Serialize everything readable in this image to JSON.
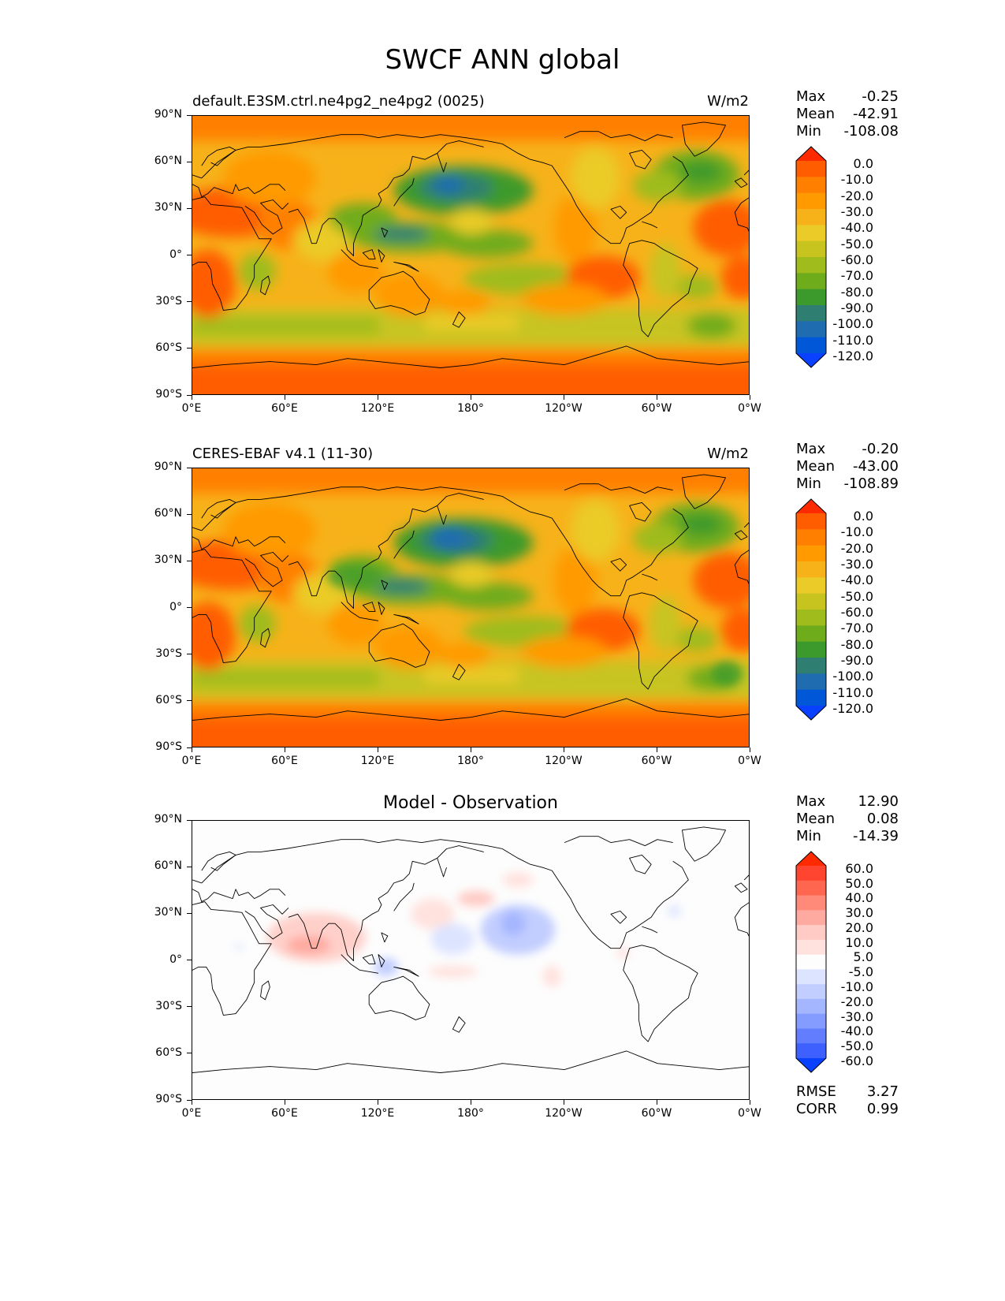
{
  "figure_title": "SWCF ANN global",
  "panels": [
    {
      "title": "default.E3SM.ctrl.ne4pg2_ne4pg2 (0025)",
      "units": "W/m2",
      "stats": [
        [
          "Max",
          "-0.25"
        ],
        [
          "Mean",
          "-42.91"
        ],
        [
          "Min",
          "-108.08"
        ]
      ],
      "colorbar": "abs"
    },
    {
      "title": "CERES-EBAF v4.1 (11-30)",
      "units": "W/m2",
      "stats": [
        [
          "Max",
          "-0.20"
        ],
        [
          "Mean",
          "-43.00"
        ],
        [
          "Min",
          "-108.89"
        ]
      ],
      "colorbar": "abs"
    },
    {
      "center_title": "Model - Observation",
      "stats": [
        [
          "Max",
          "12.90"
        ],
        [
          "Mean",
          "0.08"
        ],
        [
          "Min",
          "-14.39"
        ]
      ],
      "metrics": [
        [
          "RMSE",
          "3.27"
        ],
        [
          "CORR",
          "0.99"
        ]
      ],
      "colorbar": "diff"
    }
  ],
  "axis_ticks": {
    "y": [
      "90°N",
      "60°N",
      "30°N",
      "0°",
      "30°S",
      "60°S",
      "90°S"
    ],
    "x": [
      "0°E",
      "60°E",
      "120°E",
      "180°",
      "120°W",
      "60°W",
      "0°W"
    ]
  },
  "colorbars": {
    "abs": {
      "labels": [
        "0.0",
        "-10.0",
        "-20.0",
        "-30.0",
        "-40.0",
        "-50.0",
        "-60.0",
        "-70.0",
        "-80.0",
        "-90.0",
        "-100.0",
        "-110.0",
        "-120.0"
      ],
      "colors": [
        "#ff2a00",
        "#ff5d00",
        "#ff8000",
        "#ff9a00",
        "#f7b21a",
        "#ebcb28",
        "#c7c420",
        "#9fbc1c",
        "#6fac1c",
        "#3c9a2c",
        "#2e7f72",
        "#1f6cb0",
        "#0058d8",
        "#0a40ff"
      ]
    },
    "diff": {
      "labels": [
        "60.0",
        "50.0",
        "40.0",
        "30.0",
        "20.0",
        "10.0",
        "5.0",
        "-5.0",
        "-10.0",
        "-20.0",
        "-30.0",
        "-40.0",
        "-50.0",
        "-60.0"
      ],
      "colors": [
        "#ff2a00",
        "#ff4530",
        "#ff6650",
        "#ff8a7a",
        "#ffaaa0",
        "#ffcbc4",
        "#ffe2de",
        "#fdfdfd",
        "#dde4ff",
        "#c2ceff",
        "#a4b6ff",
        "#849bff",
        "#627eff",
        "#3d60ff",
        "#0a40ff"
      ]
    }
  },
  "chart_data": {
    "type": "heatmap",
    "title": "SWCF ANN global",
    "variable": "SWCF",
    "units": "W/m2",
    "xlim": [
      0,
      360
    ],
    "ylim": [
      -90,
      90
    ],
    "panels": [
      {
        "name": "default.E3SM.ctrl.ne4pg2_ne4pg2 (0025)",
        "max": -0.25,
        "mean": -42.91,
        "min": -108.08
      },
      {
        "name": "CERES-EBAF v4.1 (11-30)",
        "max": -0.2,
        "mean": -43.0,
        "min": -108.89
      },
      {
        "name": "Model - Observation",
        "max": 12.9,
        "mean": 0.08,
        "min": -14.39,
        "rmse": 3.27,
        "corr": 0.99
      }
    ],
    "levels_abs": [
      0,
      -10,
      -20,
      -30,
      -40,
      -50,
      -60,
      -70,
      -80,
      -90,
      -100,
      -110,
      -120
    ],
    "levels_diff": [
      60,
      50,
      40,
      30,
      20,
      10,
      5,
      -5,
      -10,
      -20,
      -30,
      -40,
      -50,
      -60
    ]
  }
}
